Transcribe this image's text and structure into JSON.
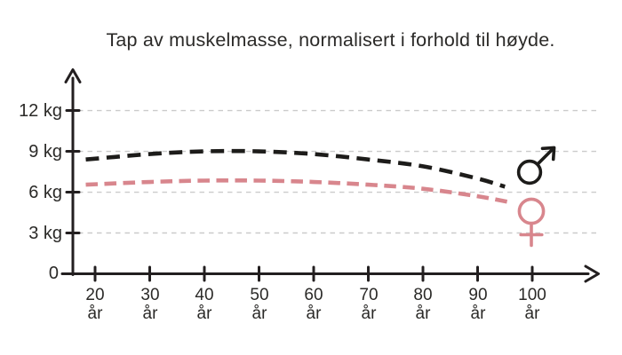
{
  "chart_data": {
    "type": "line",
    "title": "Tap av muskelmasse, normalisert i forhold til høyde.",
    "grid": "horizontal-dashed",
    "grid_color": "#cbcbcb",
    "axis_color": "#231f20",
    "text_color": "#2b2a28",
    "ylim": [
      0,
      13
    ],
    "xlim_years": [
      20,
      100
    ],
    "x_unit": "år",
    "categories": [
      "20",
      "30",
      "40",
      "50",
      "60",
      "70",
      "80",
      "90",
      "100"
    ],
    "y_tick_labels": [
      "12 kg",
      "9 kg",
      "6 kg",
      "3 kg"
    ],
    "origin_label": "0",
    "legend_position": "right-of-curves",
    "series": [
      {
        "name": "Menn",
        "symbol": "male-sign",
        "symbol_glyph": "♂",
        "color": "#1d1c1a",
        "line_style": "dashed",
        "values_kg_by_decade": [
          8.5,
          8.8,
          9.0,
          9.0,
          8.8,
          8.4,
          7.9,
          7.0,
          null
        ],
        "end_point": {
          "age": 95,
          "kg": 6.4
        },
        "points": [
          [
            18.3,
            8.4
          ],
          [
            30,
            8.8
          ],
          [
            40,
            9.0
          ],
          [
            50,
            9.0
          ],
          [
            60,
            8.8
          ],
          [
            70,
            8.4
          ],
          [
            80,
            7.9
          ],
          [
            90,
            7.0
          ],
          [
            95,
            6.4
          ]
        ]
      },
      {
        "name": "Kvinner",
        "symbol": "female-sign",
        "symbol_glyph": "♀",
        "color": "#d8868d",
        "line_style": "dashed",
        "values_kg_by_decade": [
          6.6,
          6.8,
          6.9,
          6.9,
          6.8,
          6.6,
          6.3,
          5.7,
          null
        ],
        "end_point": {
          "age": 96,
          "kg": 5.3
        },
        "points": [
          [
            18.3,
            6.55
          ],
          [
            30,
            6.75
          ],
          [
            40,
            6.85
          ],
          [
            50,
            6.85
          ],
          [
            60,
            6.75
          ],
          [
            70,
            6.55
          ],
          [
            80,
            6.25
          ],
          [
            90,
            5.7
          ],
          [
            96,
            5.25
          ]
        ]
      }
    ]
  }
}
